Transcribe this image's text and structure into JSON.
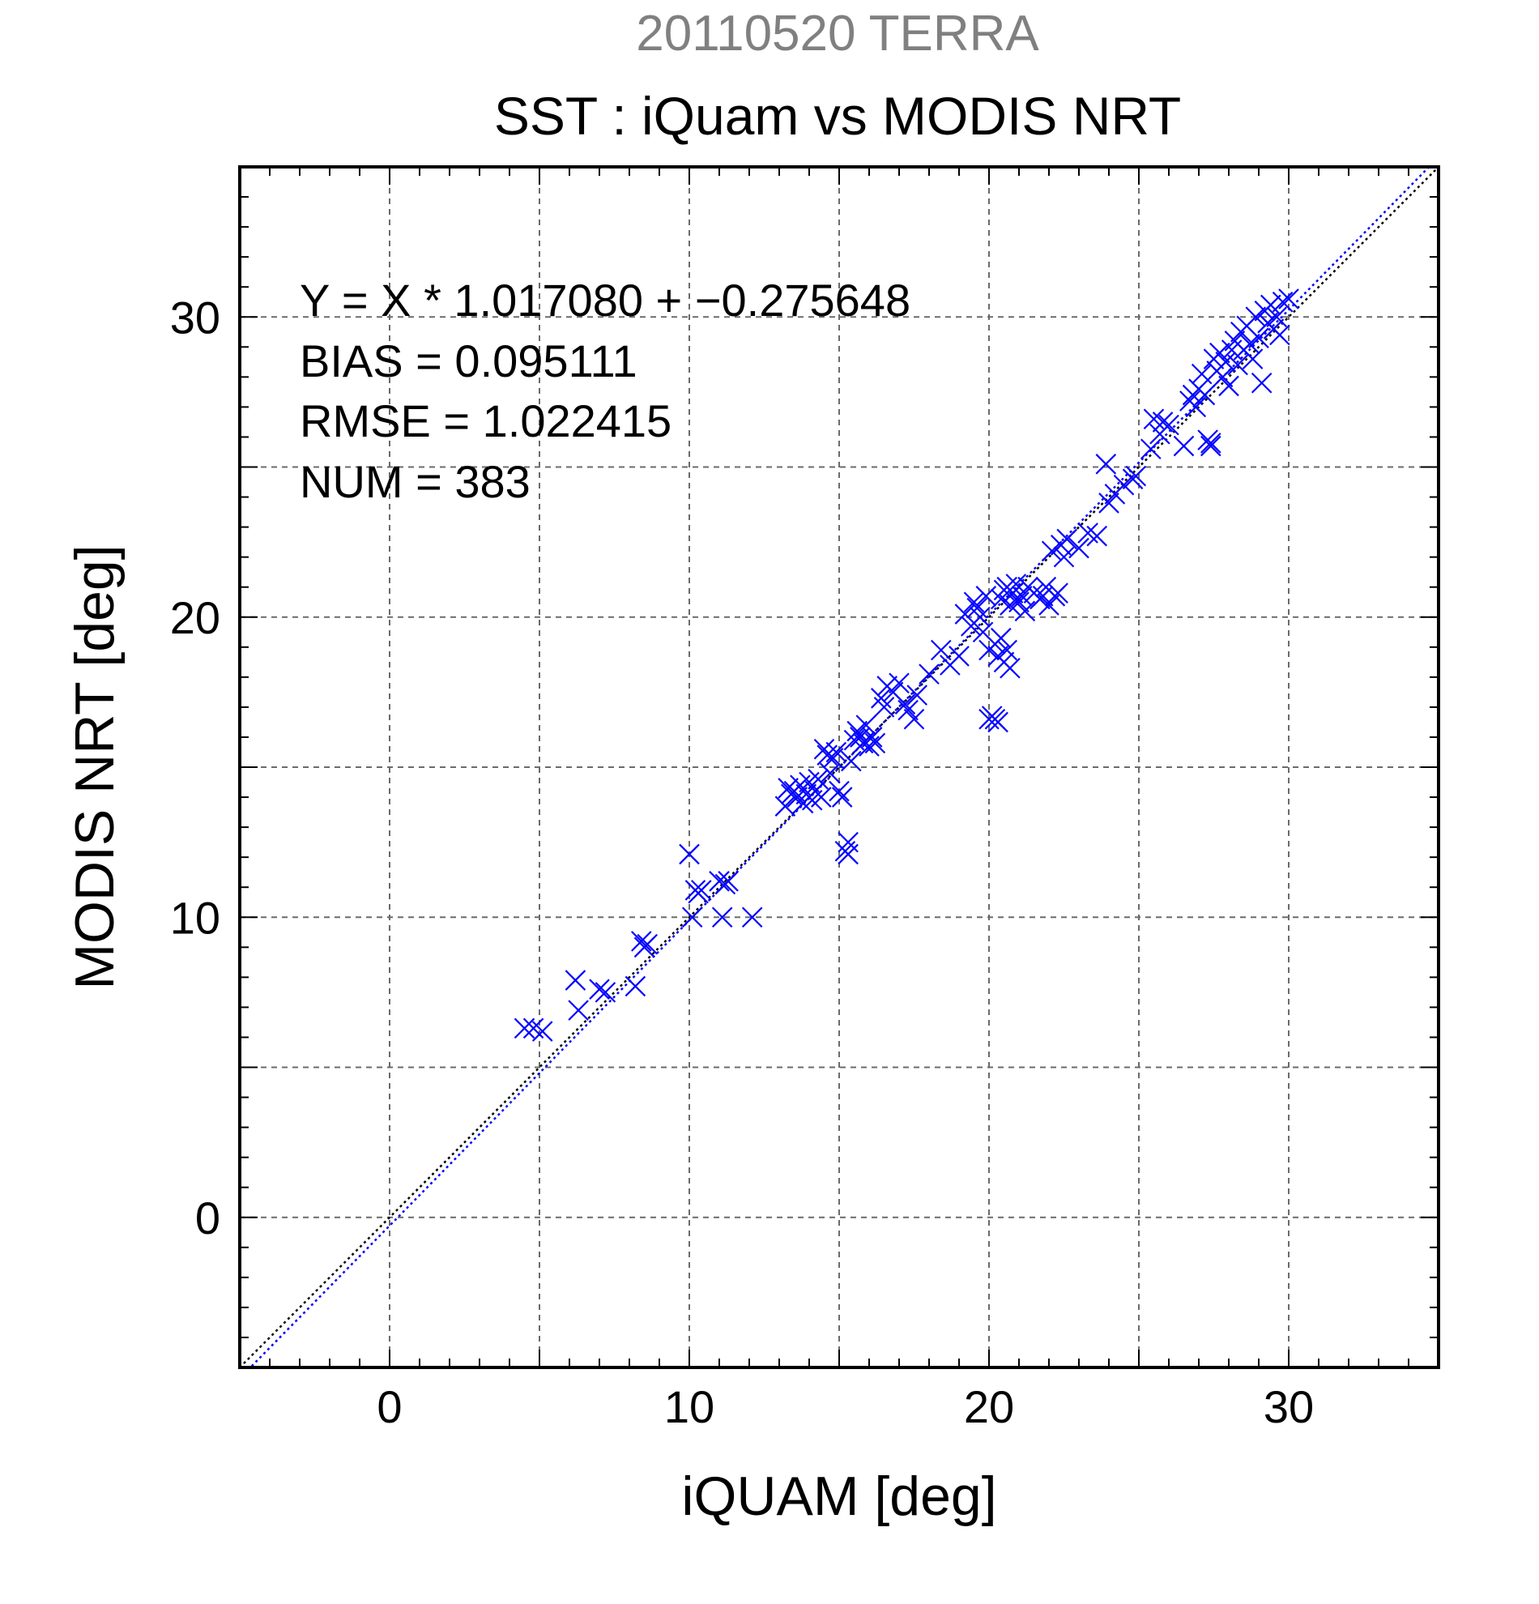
{
  "chart_data": {
    "type": "scatter",
    "title": "SST : iQuam vs MODIS NRT",
    "subtitle": "20110520 TERRA",
    "xlabel": "iQUAM [deg]",
    "ylabel": "MODIS NRT [deg]",
    "xlim": [
      -5,
      35
    ],
    "ylim": [
      -5,
      35
    ],
    "x_ticks": [
      0,
      10,
      20,
      30
    ],
    "y_ticks": [
      0,
      10,
      20,
      30
    ],
    "x_tick_labels": [
      "0",
      "10",
      "20",
      "30"
    ],
    "y_tick_labels": [
      "0",
      "10",
      "20",
      "30"
    ],
    "grid": true,
    "colors": {
      "points": "#0000ff",
      "fit_line": "#0000ff",
      "identity_line": "#000000",
      "subtitle": "#808080"
    },
    "annotations": [
      "Y = X * 1.017080 + −0.275648",
      "BIAS = 0.095111",
      "RMSE = 1.022415",
      "NUM = 383"
    ],
    "fit": {
      "slope": 1.01708,
      "intercept": -0.275648
    },
    "series": [
      {
        "marker": "x",
        "points": [
          [
            4.5,
            6.3
          ],
          [
            4.8,
            6.3
          ],
          [
            5.1,
            6.2
          ],
          [
            6.2,
            7.9
          ],
          [
            6.3,
            6.9
          ],
          [
            7.0,
            7.6
          ],
          [
            7.2,
            7.5
          ],
          [
            8.2,
            7.7
          ],
          [
            8.4,
            9.2
          ],
          [
            8.5,
            9.0
          ],
          [
            8.6,
            9.1
          ],
          [
            10.0,
            12.1
          ],
          [
            10.1,
            10.0
          ],
          [
            10.2,
            10.9
          ],
          [
            10.3,
            10.8
          ],
          [
            10.4,
            10.9
          ],
          [
            11.0,
            11.2
          ],
          [
            11.1,
            10.0
          ],
          [
            11.2,
            11.1
          ],
          [
            11.3,
            11.2
          ],
          [
            12.1,
            10.0
          ],
          [
            13.2,
            13.7
          ],
          [
            13.3,
            14.3
          ],
          [
            13.4,
            14.1
          ],
          [
            13.5,
            14.2
          ],
          [
            13.6,
            14.0
          ],
          [
            13.7,
            14.4
          ],
          [
            13.8,
            13.8
          ],
          [
            13.9,
            14.1
          ],
          [
            14.0,
            14.5
          ],
          [
            14.1,
            13.9
          ],
          [
            14.2,
            14.2
          ],
          [
            14.3,
            14.6
          ],
          [
            14.4,
            14.0
          ],
          [
            14.5,
            15.6
          ],
          [
            14.6,
            15.4
          ],
          [
            14.7,
            14.8
          ],
          [
            14.8,
            15.3
          ],
          [
            14.9,
            15.5
          ],
          [
            15.0,
            14.2
          ],
          [
            15.1,
            14.0
          ],
          [
            15.2,
            12.2
          ],
          [
            15.3,
            12.1
          ],
          [
            15.3,
            12.5
          ],
          [
            15.4,
            15.2
          ],
          [
            15.5,
            15.9
          ],
          [
            15.6,
            16.2
          ],
          [
            15.7,
            16.0
          ],
          [
            15.8,
            15.8
          ],
          [
            15.9,
            16.4
          ],
          [
            16.0,
            15.7
          ],
          [
            16.1,
            16.0
          ],
          [
            16.2,
            15.8
          ],
          [
            16.4,
            17.3
          ],
          [
            16.5,
            17.0
          ],
          [
            16.6,
            17.7
          ],
          [
            16.8,
            17.5
          ],
          [
            17.0,
            17.8
          ],
          [
            17.2,
            17.1
          ],
          [
            17.3,
            16.9
          ],
          [
            17.5,
            16.6
          ],
          [
            17.6,
            17.4
          ],
          [
            18.0,
            18.1
          ],
          [
            18.4,
            18.9
          ],
          [
            18.7,
            18.4
          ],
          [
            19.0,
            18.7
          ],
          [
            19.2,
            20.1
          ],
          [
            19.4,
            19.7
          ],
          [
            19.5,
            20.5
          ],
          [
            19.6,
            20.3
          ],
          [
            19.7,
            20.0
          ],
          [
            19.8,
            19.5
          ],
          [
            19.9,
            20.7
          ],
          [
            20.0,
            16.6
          ],
          [
            20.1,
            16.7
          ],
          [
            20.2,
            16.6
          ],
          [
            20.3,
            16.5
          ],
          [
            20.0,
            18.9
          ],
          [
            20.2,
            19.1
          ],
          [
            20.3,
            18.7
          ],
          [
            20.4,
            19.3
          ],
          [
            20.5,
            18.5
          ],
          [
            20.6,
            18.9
          ],
          [
            20.7,
            18.3
          ],
          [
            20.4,
            20.6
          ],
          [
            20.5,
            20.9
          ],
          [
            20.6,
            21.0
          ],
          [
            20.7,
            20.4
          ],
          [
            20.8,
            20.8
          ],
          [
            20.9,
            21.1
          ],
          [
            21.0,
            20.5
          ],
          [
            21.1,
            20.7
          ],
          [
            21.2,
            20.2
          ],
          [
            21.3,
            21.0
          ],
          [
            21.5,
            20.8
          ],
          [
            21.7,
            20.6
          ],
          [
            21.8,
            20.7
          ],
          [
            21.9,
            21.0
          ],
          [
            22.0,
            20.4
          ],
          [
            22.1,
            22.2
          ],
          [
            22.2,
            20.7
          ],
          [
            22.3,
            20.8
          ],
          [
            22.4,
            22.4
          ],
          [
            22.5,
            22.0
          ],
          [
            22.6,
            22.6
          ],
          [
            23.0,
            22.3
          ],
          [
            23.3,
            22.8
          ],
          [
            23.6,
            22.7
          ],
          [
            23.9,
            25.1
          ],
          [
            24.0,
            23.8
          ],
          [
            24.2,
            24.1
          ],
          [
            24.5,
            24.4
          ],
          [
            24.8,
            24.6
          ],
          [
            24.9,
            24.7
          ],
          [
            25.4,
            25.6
          ],
          [
            25.5,
            26.6
          ],
          [
            25.7,
            26.1
          ],
          [
            25.8,
            26.5
          ],
          [
            26.0,
            26.4
          ],
          [
            26.5,
            25.7
          ],
          [
            26.7,
            27.2
          ],
          [
            26.8,
            27.4
          ],
          [
            26.9,
            27.0
          ],
          [
            27.0,
            27.6
          ],
          [
            27.1,
            28.1
          ],
          [
            27.2,
            27.4
          ],
          [
            27.3,
            25.9
          ],
          [
            27.4,
            25.7
          ],
          [
            27.4,
            25.8
          ],
          [
            27.5,
            28.6
          ],
          [
            27.6,
            28.2
          ],
          [
            27.7,
            28.8
          ],
          [
            27.8,
            28.0
          ],
          [
            27.9,
            28.5
          ],
          [
            28.0,
            27.7
          ],
          [
            28.1,
            28.9
          ],
          [
            28.2,
            29.2
          ],
          [
            28.3,
            28.4
          ],
          [
            28.4,
            29.5
          ],
          [
            28.5,
            28.9
          ],
          [
            28.6,
            29.7
          ],
          [
            28.7,
            29.1
          ],
          [
            28.8,
            28.6
          ],
          [
            28.9,
            30.0
          ],
          [
            29.0,
            29.3
          ],
          [
            29.1,
            27.8
          ],
          [
            29.2,
            30.2
          ],
          [
            29.3,
            29.8
          ],
          [
            29.4,
            30.4
          ],
          [
            29.5,
            29.6
          ],
          [
            29.6,
            30.0
          ],
          [
            29.7,
            29.4
          ],
          [
            29.8,
            30.5
          ],
          [
            30.0,
            30.6
          ]
        ]
      }
    ]
  }
}
